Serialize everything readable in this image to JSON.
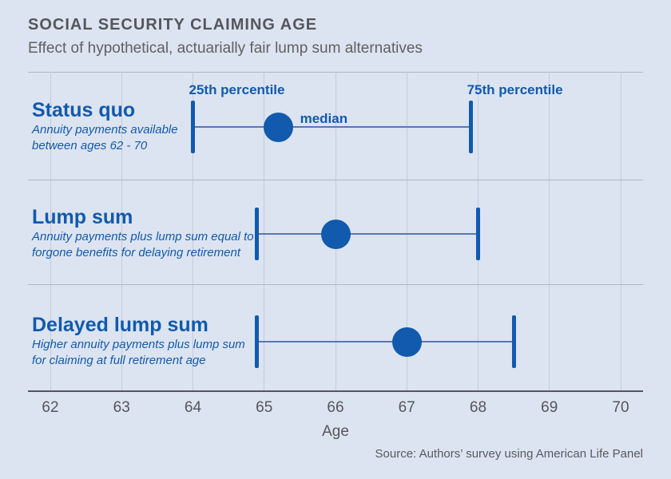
{
  "header": {
    "title": "SOCIAL SECURITY CLAIMING AGE",
    "subtitle": "Effect of hypothetical, actuarially fair lump sum alternatives"
  },
  "source": "Source: Authors’ survey using American Life Panel",
  "colors": {
    "background": "#dce4f1",
    "accent_blue": "#115aad",
    "whisker_blue": "#5a76b6",
    "gridline": "#c6cbd8",
    "separator": "#b0b7c4",
    "axis": "#53565c",
    "text_gray": "#55565a"
  },
  "chart_data": {
    "type": "scatter",
    "variant": "dot-and-interval (25th percentile, median, 75th percentile)",
    "title": "SOCIAL SECURITY CLAIMING AGE",
    "subtitle": "Effect of hypothetical, actuarially fair lump sum alternatives",
    "xlabel": "Age",
    "x_range": [
      62,
      70
    ],
    "x_ticks": [
      "62",
      "63",
      "64",
      "65",
      "66",
      "67",
      "68",
      "69",
      "70"
    ],
    "grid": "vertical gridlines on, horizontal row separators",
    "annotations": {
      "p25": "25th percentile",
      "median": "median",
      "p75": "75th percentile"
    },
    "rows": [
      {
        "label": "Status quo",
        "desc_lines": [
          "Annuity payments available",
          "between ages 62 - 70"
        ],
        "p25": 64.0,
        "median": 65.2,
        "p75": 67.9
      },
      {
        "label": "Lump sum",
        "desc_lines": [
          "Annuity payments plus lump sum equal to",
          "forgone benefits for delaying retirement"
        ],
        "p25": 64.9,
        "median": 66.0,
        "p75": 68.0
      },
      {
        "label": "Delayed lump sum",
        "desc_lines": [
          "Higher annuity payments plus lump sum",
          "for claiming at full retirement age"
        ],
        "p25": 64.9,
        "median": 67.0,
        "p75": 68.5
      }
    ]
  }
}
